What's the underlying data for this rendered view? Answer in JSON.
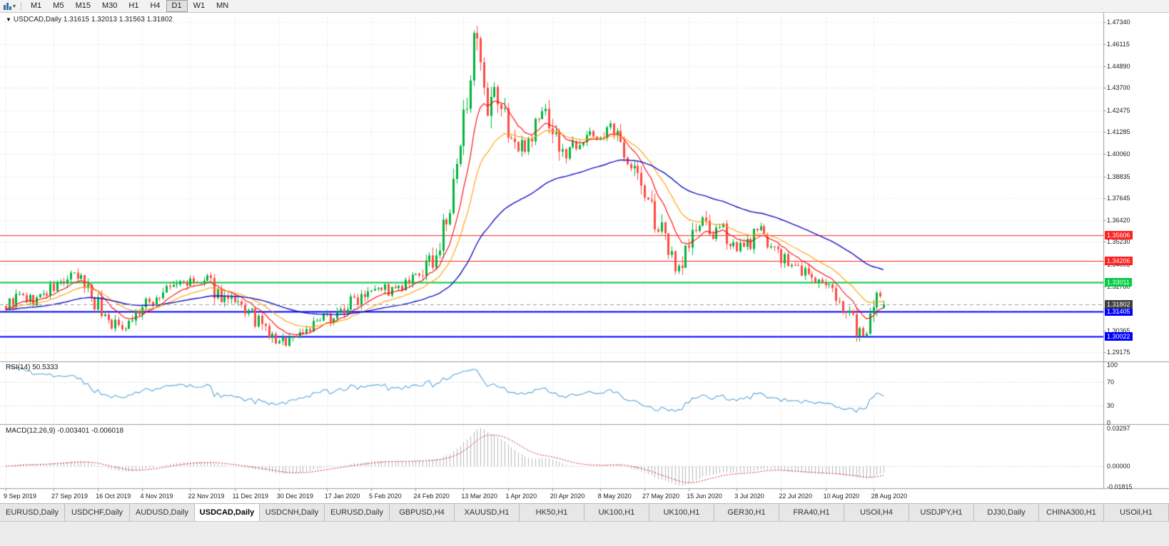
{
  "toolbar": {
    "timeframes": [
      "M1",
      "M5",
      "M15",
      "M30",
      "H1",
      "H4",
      "D1",
      "W1",
      "MN"
    ],
    "active_timeframe": "D1"
  },
  "chart": {
    "title": "USDCAD,Daily 1.31615 1.32013 1.31563 1.31802",
    "symbol": "USDCAD",
    "period": "Daily",
    "ohlc": {
      "open": "1.31615",
      "high": "1.32013",
      "low": "1.31563",
      "close": "1.31802"
    }
  },
  "indicators": {
    "rsi": {
      "title": "RSI(14) 50.5333",
      "value": "50.5333",
      "levels": [
        {
          "label": "100",
          "value": 100
        },
        {
          "label": "70",
          "value": 70
        },
        {
          "label": "30",
          "value": 30
        },
        {
          "label": "0",
          "value": 0
        }
      ]
    },
    "macd": {
      "title": "MACD(12,26,9) -0.003401 -0.006018",
      "main_value": "-0.003401",
      "signal_value": "-0.006018",
      "scale": [
        {
          "label": "0.03297",
          "value": 0.03297
        },
        {
          "label": "0.00000",
          "value": 0
        },
        {
          "label": "-0.01815",
          "value": -0.01815
        }
      ]
    }
  },
  "chart_data": {
    "type": "candlestick",
    "symbol": "USDCAD",
    "timeframe": "Daily",
    "candles_count": 258,
    "price_range": [
      1.287,
      1.476
    ],
    "price_axis_labels": [
      "1.47340",
      "1.46115",
      "1.44890",
      "1.43700",
      "1.42475",
      "1.41285",
      "1.40060",
      "1.38835",
      "1.37645",
      "1.36420",
      "1.35230",
      "1.34005",
      "1.32780",
      "1.31590",
      "1.30365",
      "1.29175"
    ],
    "date_ticks": [
      {
        "label": "9 Sep 2019",
        "index": 0
      },
      {
        "label": "27 Sep 2019",
        "index": 14
      },
      {
        "label": "16 Oct 2019",
        "index": 27
      },
      {
        "label": "4 Nov 2019",
        "index": 40
      },
      {
        "label": "22 Nov 2019",
        "index": 54
      },
      {
        "label": "11 Dec 2019",
        "index": 67
      },
      {
        "label": "30 Dec 2019",
        "index": 80
      },
      {
        "label": "17 Jan 2020",
        "index": 94
      },
      {
        "label": "5 Feb 2020",
        "index": 107
      },
      {
        "label": "24 Feb 2020",
        "index": 120
      },
      {
        "label": "13 Mar 2020",
        "index": 134
      },
      {
        "label": "1 Apr 2020",
        "index": 147
      },
      {
        "label": "20 Apr 2020",
        "index": 160
      },
      {
        "label": "8 May 2020",
        "index": 174
      },
      {
        "label": "27 May 2020",
        "index": 187
      },
      {
        "label": "15 Jun 2020",
        "index": 200
      },
      {
        "label": "3 Jul 2020",
        "index": 214
      },
      {
        "label": "22 Jul 2020",
        "index": 227
      },
      {
        "label": "10 Aug 2020",
        "index": 240
      },
      {
        "label": "28 Aug 2020",
        "index": 254
      }
    ],
    "hlines": [
      {
        "price": 1.35606,
        "label": "1.35606",
        "color": "#ff2020",
        "width": 1
      },
      {
        "price": 1.34206,
        "label": "1.34206",
        "color": "#ff2020",
        "width": 1
      },
      {
        "price": 1.33011,
        "label": "1.33011",
        "color": "#00cc44",
        "width": 2
      },
      {
        "price": 1.31405,
        "label": "1.31405",
        "color": "#0000ff",
        "width": 2
      },
      {
        "price": 1.30022,
        "label": "1.30022",
        "color": "#0000ff",
        "width": 2
      }
    ],
    "current_price": {
      "value": 1.31802,
      "label": "1.31802",
      "badge_color": "#3f3f3f",
      "line_color": "#9a9a9a"
    },
    "last_candle": {
      "open": 1.31615,
      "high": 1.32013,
      "low": 1.31563,
      "close": 1.31802
    },
    "candle_up": "#00b43c",
    "candle_down": "#ff4a42",
    "ma_lines": [
      {
        "period": 10,
        "color": "#ff0000"
      },
      {
        "period": 21,
        "color": "#ff9e00"
      },
      {
        "period": 60,
        "color": "#1414c8"
      }
    ],
    "rsi": {
      "period": 14,
      "color": "#58a6dd",
      "dotted_levels": [
        70,
        30
      ],
      "range": [
        0,
        100
      ],
      "last": 50.5333
    },
    "macd": {
      "fast": 12,
      "slow": 26,
      "signal": 9,
      "hist_color": "#b8b8b8",
      "signal_color": "#dd2222",
      "range": [
        -0.01815,
        0.03297
      ]
    },
    "seed": 9,
    "anchors": [
      [
        0,
        1.317
      ],
      [
        4,
        1.3225
      ],
      [
        8,
        1.3195
      ],
      [
        12,
        1.3245
      ],
      [
        16,
        1.3295
      ],
      [
        20,
        1.3335
      ],
      [
        23,
        1.33
      ],
      [
        27,
        1.3175
      ],
      [
        30,
        1.3095
      ],
      [
        33,
        1.3055
      ],
      [
        36,
        1.309
      ],
      [
        40,
        1.316
      ],
      [
        44,
        1.3215
      ],
      [
        48,
        1.327
      ],
      [
        52,
        1.3305
      ],
      [
        56,
        1.329
      ],
      [
        59,
        1.3305
      ],
      [
        62,
        1.324
      ],
      [
        66,
        1.3185
      ],
      [
        70,
        1.315
      ],
      [
        74,
        1.3075
      ],
      [
        77,
        1.301
      ],
      [
        80,
        1.2965
      ],
      [
        83,
        1.299
      ],
      [
        87,
        1.3035
      ],
      [
        91,
        1.3075
      ],
      [
        94,
        1.3105
      ],
      [
        98,
        1.314
      ],
      [
        102,
        1.3205
      ],
      [
        106,
        1.3275
      ],
      [
        109,
        1.329
      ],
      [
        112,
        1.325
      ],
      [
        116,
        1.3265
      ],
      [
        120,
        1.332
      ],
      [
        124,
        1.34
      ],
      [
        127,
        1.35
      ],
      [
        130,
        1.37
      ],
      [
        132,
        1.39
      ],
      [
        134,
        1.418
      ],
      [
        136,
        1.452
      ],
      [
        137,
        1.463
      ],
      [
        138,
        1.456
      ],
      [
        139,
        1.442
      ],
      [
        141,
        1.418
      ],
      [
        143,
        1.434
      ],
      [
        145,
        1.426
      ],
      [
        147,
        1.415
      ],
      [
        150,
        1.402
      ],
      [
        153,
        1.409
      ],
      [
        156,
        1.421
      ],
      [
        158,
        1.4245
      ],
      [
        160,
        1.415
      ],
      [
        163,
        1.4
      ],
      [
        166,
        1.406
      ],
      [
        170,
        1.411
      ],
      [
        174,
        1.41
      ],
      [
        177,
        1.4145
      ],
      [
        180,
        1.406
      ],
      [
        183,
        1.397
      ],
      [
        186,
        1.382
      ],
      [
        189,
        1.37
      ],
      [
        192,
        1.356
      ],
      [
        195,
        1.344
      ],
      [
        197,
        1.3385
      ],
      [
        199,
        1.348
      ],
      [
        201,
        1.356
      ],
      [
        204,
        1.3635
      ],
      [
        207,
        1.356
      ],
      [
        210,
        1.359
      ],
      [
        213,
        1.351
      ],
      [
        216,
        1.348
      ],
      [
        219,
        1.356
      ],
      [
        222,
        1.359
      ],
      [
        225,
        1.348
      ],
      [
        227,
        1.343
      ],
      [
        230,
        1.339
      ],
      [
        233,
        1.337
      ],
      [
        236,
        1.333
      ],
      [
        239,
        1.328
      ],
      [
        242,
        1.325
      ],
      [
        245,
        1.319
      ],
      [
        248,
        1.309
      ],
      [
        250,
        1.303
      ],
      [
        252,
        1.3008
      ],
      [
        253,
        1.306
      ],
      [
        254,
        1.309
      ],
      [
        255,
        1.3155
      ],
      [
        256,
        1.3235
      ],
      [
        257,
        1.318
      ]
    ]
  },
  "tabs": [
    {
      "label": "EURUSD,Daily",
      "active": false
    },
    {
      "label": "USDCHF,Daily",
      "active": false
    },
    {
      "label": "AUDUSD,Daily",
      "active": false
    },
    {
      "label": "USDCAD,Daily",
      "active": true
    },
    {
      "label": "USDCNH,Daily",
      "active": false
    },
    {
      "label": "EURUSD,Daily",
      "active": false
    },
    {
      "label": "GBPUSD,H4",
      "active": false
    },
    {
      "label": "XAUUSD,H1",
      "active": false
    },
    {
      "label": "HK50,H1",
      "active": false
    },
    {
      "label": "UK100,H1",
      "active": false
    },
    {
      "label": "UK100,H1",
      "active": false
    },
    {
      "label": "GER30,H1",
      "active": false
    },
    {
      "label": "FRA40,H1",
      "active": false
    },
    {
      "label": "USOil,H4",
      "active": false
    },
    {
      "label": "USDJPY,H1",
      "active": false
    },
    {
      "label": "DJ30,Daily",
      "active": false
    },
    {
      "label": "CHINA300,H1",
      "active": false
    },
    {
      "label": "USOil,H1",
      "active": false
    }
  ]
}
